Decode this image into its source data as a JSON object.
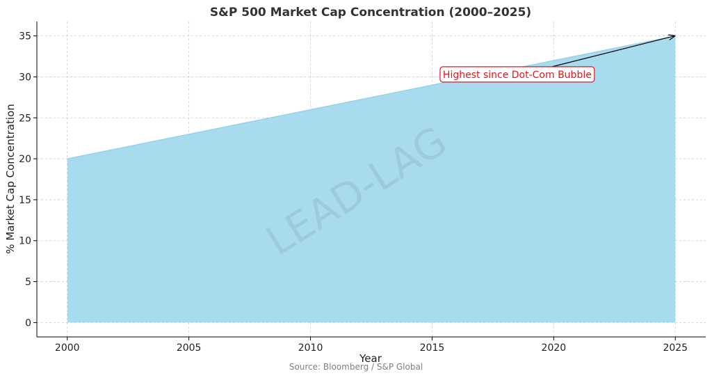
{
  "chart_data": {
    "type": "area",
    "title": "S&P 500 Market Cap Concentration (2000–2025)",
    "xlabel": "Year",
    "ylabel": "% Market Cap Concentration",
    "x": [
      2000,
      2025
    ],
    "series": [
      {
        "values": [
          20,
          35
        ]
      }
    ],
    "xlim": [
      1998.75,
      2026.25
    ],
    "ylim": [
      -1.75,
      36.75
    ],
    "xticks": [
      "2000",
      "2005",
      "2010",
      "2015",
      "2020",
      "2025"
    ],
    "yticks": [
      "0",
      "5",
      "10",
      "15",
      "20",
      "25",
      "30",
      "35"
    ],
    "grid": true,
    "grid_style": "dashed",
    "annotation": {
      "text": "Highest since Dot-Com Bubble",
      "text_x": 2018.5,
      "text_y": 30.3,
      "arrow_to_x": 2025,
      "arrow_to_y": 35,
      "color": "#e8141c"
    },
    "fill_color": "#a8dbee",
    "line_color": "#8ecfe8",
    "source": "Source: Bloomberg / S&P Global",
    "watermark": "LEAD-LAG"
  }
}
